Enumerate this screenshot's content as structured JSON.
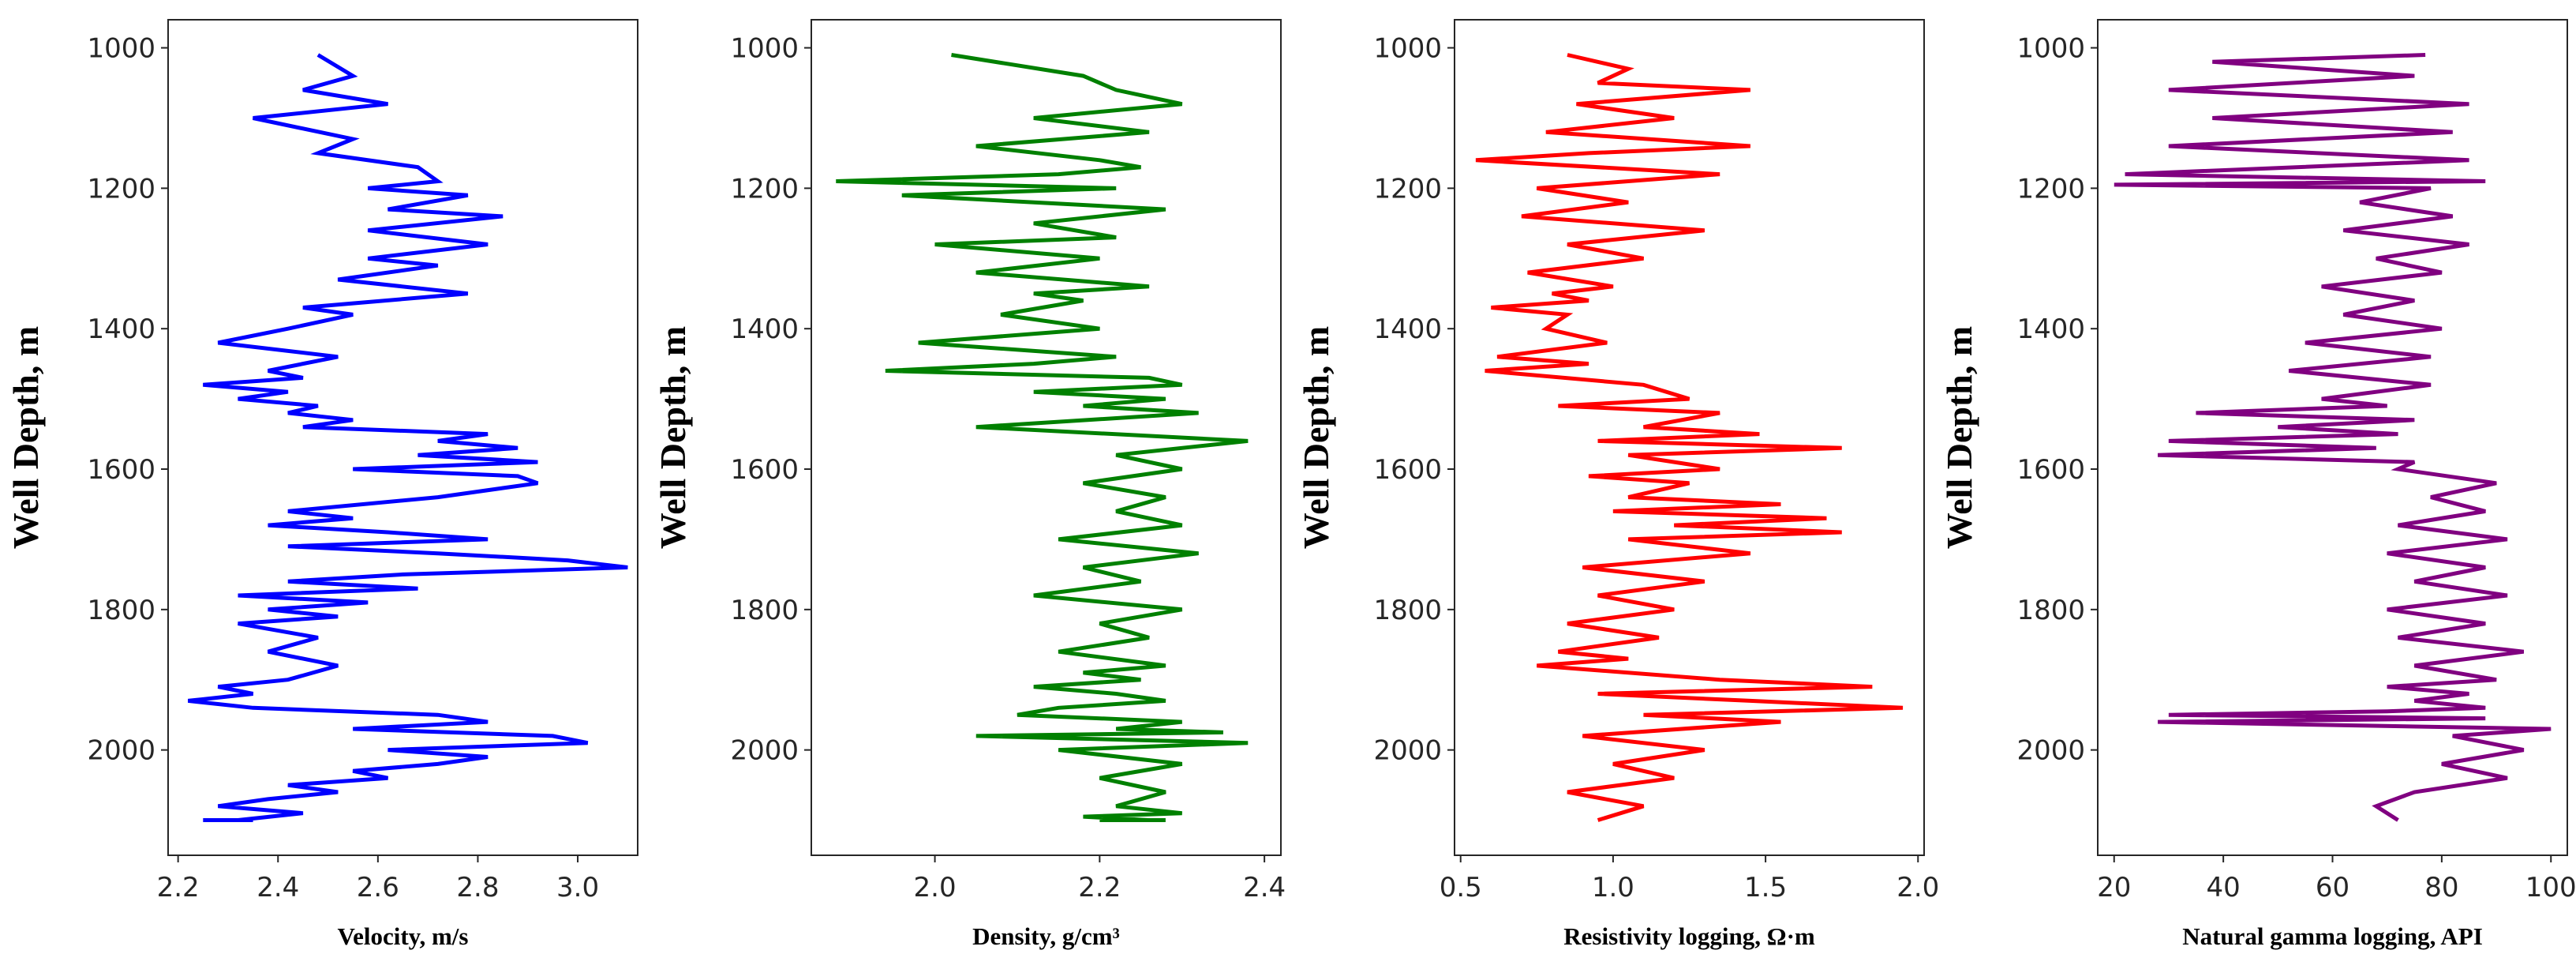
{
  "chart_data": [
    {
      "type": "line",
      "ylabel": "Well Depth, m",
      "xlabel": "Velocity, m/s",
      "color": "#0000ff",
      "xlim": [
        2.18,
        3.12
      ],
      "xticks": [
        "2.2",
        "2.4",
        "2.6",
        "2.8",
        "3.0"
      ],
      "ylim": [
        2150,
        960
      ],
      "yticks": [
        "1000",
        "1200",
        "1400",
        "1600",
        "1800",
        "2000"
      ],
      "series": [
        {
          "name": "",
          "x": [
            2.48,
            2.55,
            2.45,
            2.62,
            2.35,
            2.55,
            2.48,
            2.68,
            2.72,
            2.58,
            2.78,
            2.62,
            2.85,
            2.58,
            2.82,
            2.58,
            2.72,
            2.52,
            2.78,
            2.45,
            2.55,
            2.42,
            2.28,
            2.52,
            2.38,
            2.45,
            2.25,
            2.42,
            2.32,
            2.48,
            2.42,
            2.55,
            2.45,
            2.82,
            2.72,
            2.88,
            2.68,
            2.92,
            2.55,
            2.88,
            2.92,
            2.72,
            2.42,
            2.55,
            2.38,
            2.62,
            2.82,
            2.42,
            2.72,
            2.98,
            3.1,
            2.65,
            2.42,
            2.68,
            2.32,
            2.58,
            2.38,
            2.52,
            2.32,
            2.48,
            2.38,
            2.52,
            2.42,
            2.28,
            2.35,
            2.22,
            2.35,
            2.72,
            2.82,
            2.55,
            2.95,
            3.02,
            2.62,
            2.82,
            2.72,
            2.55,
            2.62,
            2.42,
            2.52,
            2.38,
            2.28,
            2.45,
            2.32,
            2.25,
            2.35,
            2.3
          ],
          "y": [
            1010,
            1040,
            1060,
            1080,
            1100,
            1130,
            1150,
            1170,
            1190,
            1200,
            1210,
            1230,
            1240,
            1260,
            1280,
            1300,
            1310,
            1330,
            1350,
            1370,
            1380,
            1400,
            1420,
            1440,
            1460,
            1470,
            1480,
            1490,
            1500,
            1510,
            1520,
            1530,
            1540,
            1550,
            1560,
            1570,
            1580,
            1590,
            1600,
            1610,
            1620,
            1640,
            1660,
            1670,
            1680,
            1690,
            1700,
            1710,
            1720,
            1730,
            1740,
            1750,
            1760,
            1770,
            1780,
            1790,
            1800,
            1810,
            1820,
            1840,
            1860,
            1880,
            1900,
            1910,
            1920,
            1930,
            1940,
            1950,
            1960,
            1970,
            1980,
            1990,
            2000,
            2010,
            2020,
            2030,
            2040,
            2050,
            2060,
            2070,
            2080,
            2090,
            2100,
            2100,
            2100,
            2100
          ]
        }
      ]
    },
    {
      "type": "line",
      "ylabel": "Well Depth, m",
      "xlabel": "Density, g/cm³",
      "color": "#008000",
      "xlim": [
        1.85,
        2.42
      ],
      "xticks": [
        "2.0",
        "2.2",
        "2.4"
      ],
      "ylim": [
        2150,
        960
      ],
      "yticks": [
        "1000",
        "1200",
        "1400",
        "1600",
        "1800",
        "2000"
      ],
      "series": [
        {
          "name": "",
          "x": [
            2.02,
            2.18,
            2.22,
            2.3,
            2.12,
            2.26,
            2.05,
            2.2,
            2.25,
            2.15,
            1.88,
            2.22,
            1.96,
            2.28,
            2.12,
            2.22,
            2.0,
            2.2,
            2.05,
            2.26,
            2.12,
            2.18,
            2.08,
            2.2,
            1.98,
            2.22,
            2.12,
            1.94,
            2.26,
            2.3,
            2.12,
            2.28,
            2.18,
            2.32,
            2.05,
            2.38,
            2.22,
            2.3,
            2.18,
            2.28,
            2.22,
            2.3,
            2.15,
            2.32,
            2.18,
            2.25,
            2.12,
            2.3,
            2.2,
            2.26,
            2.15,
            2.28,
            2.18,
            2.25,
            2.12,
            2.22,
            2.28,
            2.15,
            2.1,
            2.3,
            2.22,
            2.35,
            2.05,
            2.38,
            2.15,
            2.3,
            2.2,
            2.28,
            2.22,
            2.3,
            2.18,
            2.26,
            2.2,
            2.28
          ],
          "y": [
            1010,
            1040,
            1060,
            1080,
            1100,
            1120,
            1140,
            1160,
            1170,
            1180,
            1190,
            1200,
            1210,
            1230,
            1250,
            1270,
            1280,
            1300,
            1320,
            1340,
            1350,
            1360,
            1380,
            1400,
            1420,
            1440,
            1450,
            1460,
            1470,
            1480,
            1490,
            1500,
            1510,
            1520,
            1540,
            1560,
            1580,
            1600,
            1620,
            1640,
            1660,
            1680,
            1700,
            1720,
            1740,
            1760,
            1780,
            1800,
            1820,
            1840,
            1860,
            1880,
            1890,
            1900,
            1910,
            1920,
            1930,
            1940,
            1950,
            1960,
            1970,
            1975,
            1980,
            1990,
            2000,
            2020,
            2040,
            2060,
            2080,
            2090,
            2095,
            2100,
            2100,
            2100
          ]
        }
      ]
    },
    {
      "type": "line",
      "ylabel": "Well Depth, m",
      "xlabel": "Resistivity logging, Ω·m",
      "color": "#ff0000",
      "xlim": [
        0.48,
        2.02
      ],
      "xticks": [
        "0.5",
        "1.0",
        "1.5",
        "2.0"
      ],
      "ylim": [
        2150,
        960
      ],
      "yticks": [
        "1000",
        "1200",
        "1400",
        "1600",
        "1800",
        "2000"
      ],
      "series": [
        {
          "name": "",
          "x": [
            0.85,
            1.05,
            0.95,
            1.45,
            0.88,
            1.2,
            0.78,
            1.45,
            0.92,
            0.55,
            1.35,
            0.75,
            1.05,
            0.7,
            1.3,
            0.85,
            1.1,
            0.72,
            1.0,
            0.8,
            0.92,
            0.6,
            0.85,
            0.78,
            0.98,
            0.62,
            0.92,
            0.58,
            1.1,
            1.25,
            0.82,
            1.35,
            1.1,
            1.48,
            0.95,
            1.75,
            1.05,
            1.35,
            0.92,
            1.25,
            1.05,
            1.55,
            1.0,
            1.7,
            1.2,
            1.75,
            1.05,
            1.45,
            0.9,
            1.3,
            0.95,
            1.2,
            0.85,
            1.15,
            0.82,
            1.05,
            0.75,
            1.35,
            1.85,
            0.95,
            1.45,
            1.95,
            1.1,
            1.55,
            0.9,
            1.3,
            1.0,
            1.2,
            0.85,
            1.1,
            0.95
          ],
          "y": [
            1010,
            1030,
            1050,
            1060,
            1080,
            1100,
            1120,
            1140,
            1150,
            1160,
            1180,
            1200,
            1220,
            1240,
            1260,
            1280,
            1300,
            1320,
            1340,
            1350,
            1360,
            1370,
            1380,
            1400,
            1420,
            1440,
            1450,
            1460,
            1480,
            1500,
            1510,
            1520,
            1540,
            1550,
            1560,
            1570,
            1580,
            1600,
            1610,
            1620,
            1640,
            1650,
            1660,
            1670,
            1680,
            1690,
            1700,
            1720,
            1740,
            1760,
            1780,
            1800,
            1820,
            1840,
            1860,
            1870,
            1880,
            1900,
            1910,
            1920,
            1930,
            1940,
            1950,
            1960,
            1980,
            2000,
            2020,
            2040,
            2060,
            2080,
            2100
          ]
        }
      ]
    },
    {
      "type": "line",
      "ylabel": "Well Depth, m",
      "xlabel": "Natural gamma logging, API",
      "color": "#800080",
      "xlim": [
        17,
        103
      ],
      "xticks": [
        "20",
        "40",
        "60",
        "80",
        "100"
      ],
      "ylim": [
        2150,
        960
      ],
      "yticks": [
        "1000",
        "1200",
        "1400",
        "1600",
        "1800",
        "2000"
      ],
      "series": [
        {
          "name": "",
          "x": [
            77,
            38,
            75,
            30,
            85,
            38,
            82,
            30,
            85,
            22,
            88,
            20,
            78,
            65,
            82,
            62,
            85,
            68,
            80,
            58,
            75,
            62,
            80,
            55,
            78,
            52,
            78,
            58,
            70,
            35,
            75,
            50,
            72,
            30,
            68,
            28,
            75,
            72,
            90,
            78,
            88,
            72,
            92,
            70,
            88,
            75,
            92,
            70,
            88,
            72,
            95,
            75,
            90,
            70,
            85,
            75,
            88,
            70,
            30,
            88,
            28,
            100,
            82,
            95,
            80,
            92,
            75,
            68,
            72
          ],
          "y": [
            1010,
            1020,
            1040,
            1060,
            1080,
            1100,
            1120,
            1140,
            1160,
            1180,
            1190,
            1195,
            1200,
            1220,
            1240,
            1260,
            1280,
            1300,
            1320,
            1340,
            1360,
            1380,
            1400,
            1420,
            1440,
            1460,
            1480,
            1500,
            1510,
            1520,
            1530,
            1540,
            1550,
            1560,
            1570,
            1580,
            1590,
            1600,
            1620,
            1640,
            1660,
            1680,
            1700,
            1720,
            1740,
            1760,
            1780,
            1800,
            1820,
            1840,
            1860,
            1880,
            1900,
            1910,
            1920,
            1930,
            1940,
            1945,
            1950,
            1955,
            1960,
            1970,
            1980,
            2000,
            2020,
            2040,
            2060,
            2080,
            2100
          ]
        }
      ]
    }
  ]
}
